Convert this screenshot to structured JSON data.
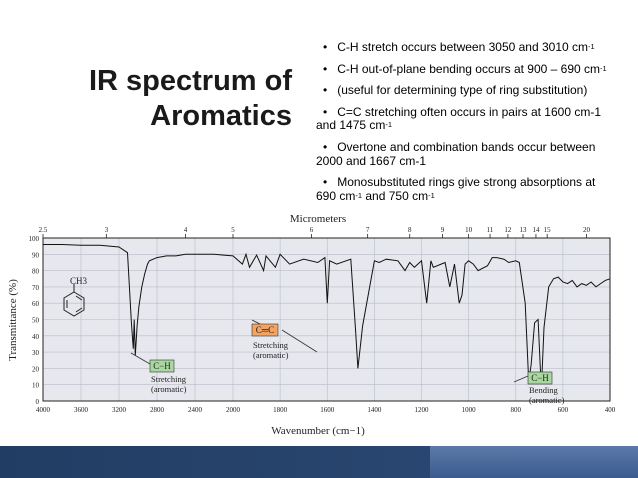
{
  "slide": {
    "title_line1": "IR spectrum of",
    "title_line2": "Aromatics",
    "bullets": [
      {
        "text": "C-H stretch occurs between 3050 and 3010 cm",
        "sup": "-1",
        "tail": ""
      },
      {
        "text": "C-H out-of-plane bending occurs at 900 – 690 cm",
        "sup": "-1",
        "tail": ""
      },
      {
        "text": "(useful for determining type of ring substitution)",
        "sup": "",
        "tail": ""
      },
      {
        "text": "C=C stretching often occurs in pairs at 1600 cm-1 and 1475 cm",
        "sup": "-1",
        "tail": ""
      },
      {
        "text": "Overtone and combination bands occur between 2000 and 1667 cm-1",
        "sup": "",
        "tail": ""
      },
      {
        "text": "Monosubstituted rings give strong absorptions at 690 cm",
        "sup": "-1",
        "tail": " and 750 cm"
      }
    ],
    "last_bullet_tail_sup": "-1",
    "colors": {
      "bar": "#223d63",
      "bar_accent": "#4a6a9c",
      "chart_bg": "#e6e8ee",
      "label_orange": "#f4a460",
      "label_green": "#a8d8a0"
    }
  },
  "chart_data": {
    "type": "line",
    "title": "Micrometers",
    "xlabel": "Wavenumber (cm−1)",
    "ylabel": "Transmittance (%)",
    "x_reversed": true,
    "xlim": [
      4000,
      400
    ],
    "ylim": [
      0,
      100
    ],
    "x_ticks": [
      {
        "v": 4000,
        "l": "4000"
      },
      {
        "v": 3600,
        "l": "3600"
      },
      {
        "v": 3200,
        "l": "3200"
      },
      {
        "v": 2800,
        "l": "2800"
      },
      {
        "v": 2400,
        "l": "2400"
      },
      {
        "v": 2000,
        "l": "2000"
      },
      {
        "v": 1800,
        "l": "1800"
      },
      {
        "v": 1600,
        "l": "1600"
      },
      {
        "v": 1400,
        "l": "1400"
      },
      {
        "v": 1200,
        "l": "1200"
      },
      {
        "v": 1000,
        "l": "1000"
      },
      {
        "v": 800,
        "l": "800"
      },
      {
        "v": 600,
        "l": "600"
      },
      {
        "v": 400,
        "l": "400"
      }
    ],
    "y_ticks": [
      0,
      10,
      20,
      30,
      40,
      50,
      60,
      70,
      80,
      90,
      100
    ],
    "micrometer_ticks": [
      {
        "um": 2.5,
        "l": "2.5"
      },
      {
        "um": 3,
        "l": "3"
      },
      {
        "um": 4,
        "l": "4"
      },
      {
        "um": 5,
        "l": "5"
      },
      {
        "um": 6,
        "l": "6"
      },
      {
        "um": 7,
        "l": "7"
      },
      {
        "um": 8,
        "l": "8"
      },
      {
        "um": 9,
        "l": "9"
      },
      {
        "um": 10,
        "l": "10"
      },
      {
        "um": 11,
        "l": "11"
      },
      {
        "um": 12,
        "l": "12"
      },
      {
        "um": 13,
        "l": "13"
      },
      {
        "um": 14,
        "l": "14"
      },
      {
        "um": 15,
        "l": "15"
      },
      {
        "um": 20,
        "l": "20"
      }
    ],
    "series": [
      {
        "x": [
          4000,
          3800,
          3600,
          3400,
          3200,
          3110,
          3090,
          3070,
          3050,
          3040,
          3028,
          3010,
          2990,
          2960,
          2930,
          2900,
          2880,
          2800,
          2700,
          2600,
          2500,
          2400,
          2300,
          2200,
          2100,
          2000,
          1960,
          1945,
          1930,
          1900,
          1870,
          1860,
          1820,
          1800,
          1760,
          1700,
          1640,
          1610,
          1600,
          1590,
          1560,
          1500,
          1480,
          1470,
          1450,
          1400,
          1380,
          1350,
          1300,
          1270,
          1250,
          1230,
          1200,
          1178,
          1160,
          1150,
          1100,
          1080,
          1060,
          1040,
          1028,
          1015,
          1000,
          980,
          960,
          920,
          900,
          880,
          850,
          830,
          800,
          785,
          760,
          745,
          735,
          720,
          705,
          694,
          690,
          680,
          660,
          640,
          620,
          600,
          580,
          560,
          540,
          520,
          500,
          480,
          460,
          440,
          420,
          400
        ],
        "y": [
          96,
          96,
          95.5,
          95.5,
          94.5,
          91,
          70,
          48,
          32,
          50,
          28,
          46,
          58,
          70,
          78,
          84,
          86,
          88,
          89,
          89,
          90,
          90,
          90,
          90,
          89.5,
          89,
          84,
          90,
          82,
          89.5,
          80,
          89,
          82,
          90,
          84,
          87,
          85,
          88,
          60,
          86,
          84,
          87,
          44,
          20,
          46,
          86,
          85,
          87,
          86,
          80,
          85,
          82,
          86,
          60,
          86,
          82,
          85,
          70,
          84,
          60,
          65,
          84,
          86,
          84,
          80,
          83,
          88,
          88,
          87,
          85,
          86,
          85,
          60,
          12,
          22,
          48,
          50,
          15,
          12,
          45,
          70,
          75,
          76,
          73,
          72,
          74,
          70,
          72,
          71,
          73,
          70,
          72,
          74,
          75
        ]
      }
    ],
    "annotations": [
      {
        "box": "C−H",
        "label1": "Stretching",
        "label2": "(aromatic)"
      },
      {
        "box": "C═C",
        "label1": "Stretching",
        "label2": "(aromatic)"
      },
      {
        "box": "C−H",
        "label1": "Bending",
        "label2": "(aromatic)"
      }
    ],
    "molecule_label": "CH3"
  }
}
